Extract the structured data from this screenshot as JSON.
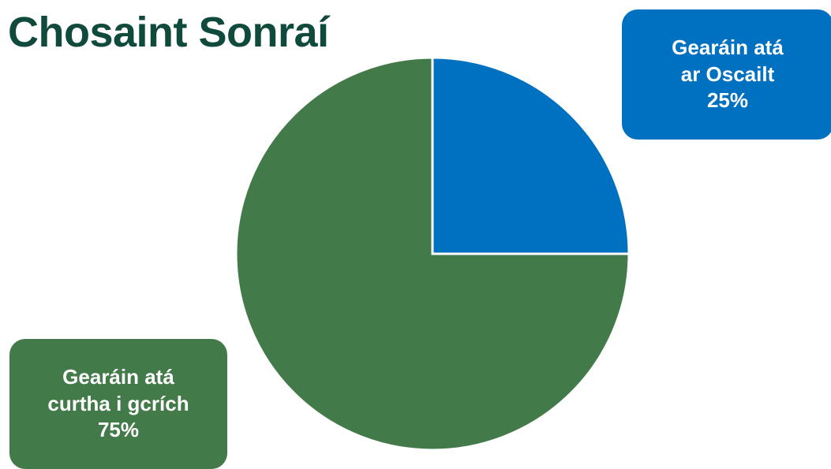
{
  "colors": {
    "title": "#0f4a3c",
    "open": "#0070c0",
    "closed": "#437a49",
    "slice_border": "#ffffff"
  },
  "chart_data": {
    "type": "pie",
    "title": "Chosaint Sonraí",
    "slices": [
      {
        "label_lines": [
          "Gearáin atá",
          "ar Oscailt"
        ],
        "percent_label": "25%",
        "value": 25,
        "color": "#0070c0"
      },
      {
        "label_lines": [
          "Gearáin atá",
          "curtha i gcrích"
        ],
        "percent_label": "75%",
        "value": 75,
        "color": "#437a49"
      }
    ]
  }
}
